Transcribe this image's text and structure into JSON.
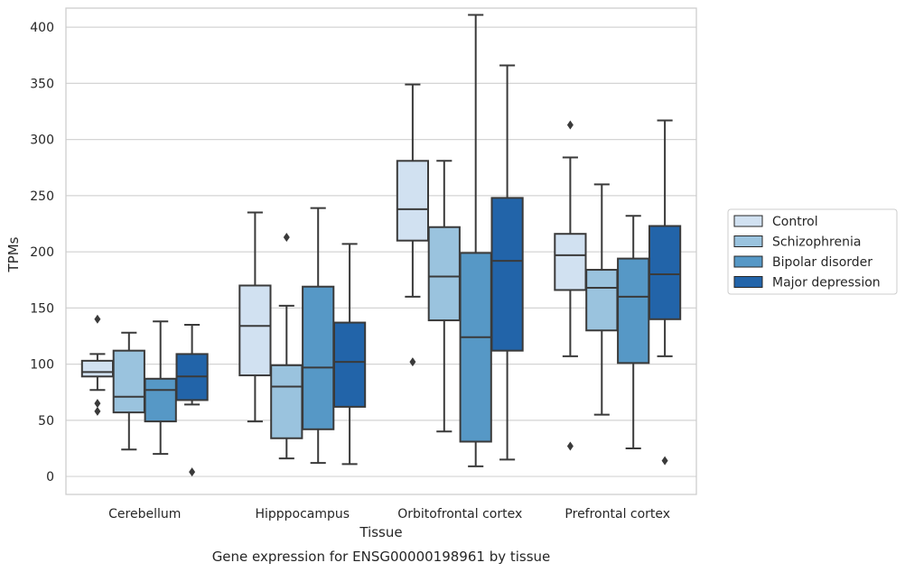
{
  "chart_data": {
    "type": "box",
    "xlabel": "Tissue",
    "ylabel": "TPMs",
    "caption": "Gene expression for ENSG00000198961 by tissue",
    "ylim": [
      -16,
      417
    ],
    "yticks": [
      0,
      50,
      100,
      150,
      200,
      250,
      300,
      350,
      400
    ],
    "grid": "horizontal",
    "legend_position": "right",
    "categories": [
      "Cerebellum",
      "Hipppocampus",
      "Orbitofrontal cortex",
      "Prefrontal cortex"
    ],
    "series": [
      {
        "name": "Control",
        "color": "#d1e1f1",
        "boxes": [
          {
            "whisker_low": 77,
            "q1": 89,
            "median": 93,
            "q3": 103,
            "whisker_high": 109,
            "outliers": [
              140,
              65,
              58
            ]
          },
          {
            "whisker_low": 49,
            "q1": 90,
            "median": 134,
            "q3": 170,
            "whisker_high": 235,
            "outliers": []
          },
          {
            "whisker_low": 160,
            "q1": 210,
            "median": 238,
            "q3": 281,
            "whisker_high": 349,
            "outliers": [
              102
            ]
          },
          {
            "whisker_low": 107,
            "q1": 166,
            "median": 197,
            "q3": 216,
            "whisker_high": 284,
            "outliers": [
              313,
              27
            ]
          }
        ]
      },
      {
        "name": "Schizophrenia",
        "color": "#9ac3de",
        "boxes": [
          {
            "whisker_low": 24,
            "q1": 57,
            "median": 71,
            "q3": 112,
            "whisker_high": 128,
            "outliers": []
          },
          {
            "whisker_low": 16,
            "q1": 34,
            "median": 80,
            "q3": 99,
            "whisker_high": 152,
            "outliers": [
              213
            ]
          },
          {
            "whisker_low": 40,
            "q1": 139,
            "median": 178,
            "q3": 222,
            "whisker_high": 281,
            "outliers": []
          },
          {
            "whisker_low": 55,
            "q1": 130,
            "median": 168,
            "q3": 184,
            "whisker_high": 260,
            "outliers": []
          }
        ]
      },
      {
        "name": "Bipolar disorder",
        "color": "#5698c6",
        "boxes": [
          {
            "whisker_low": 20,
            "q1": 49,
            "median": 77,
            "q3": 87,
            "whisker_high": 138,
            "outliers": []
          },
          {
            "whisker_low": 12,
            "q1": 42,
            "median": 97,
            "q3": 169,
            "whisker_high": 239,
            "outliers": []
          },
          {
            "whisker_low": 9,
            "q1": 31,
            "median": 124,
            "q3": 199,
            "whisker_high": 411,
            "outliers": []
          },
          {
            "whisker_low": 25,
            "q1": 101,
            "median": 160,
            "q3": 194,
            "whisker_high": 232,
            "outliers": []
          }
        ]
      },
      {
        "name": "Major depression",
        "color": "#2264a9",
        "boxes": [
          {
            "whisker_low": 64,
            "q1": 68,
            "median": 89,
            "q3": 109,
            "whisker_high": 135,
            "outliers": [
              4
            ]
          },
          {
            "whisker_low": 11,
            "q1": 62,
            "median": 102,
            "q3": 137,
            "whisker_high": 207,
            "outliers": []
          },
          {
            "whisker_low": 15,
            "q1": 112,
            "median": 192,
            "q3": 248,
            "whisker_high": 366,
            "outliers": []
          },
          {
            "whisker_low": 107,
            "q1": 140,
            "median": 180,
            "q3": 223,
            "whisker_high": 317,
            "outliers": [
              14
            ]
          }
        ]
      }
    ]
  }
}
